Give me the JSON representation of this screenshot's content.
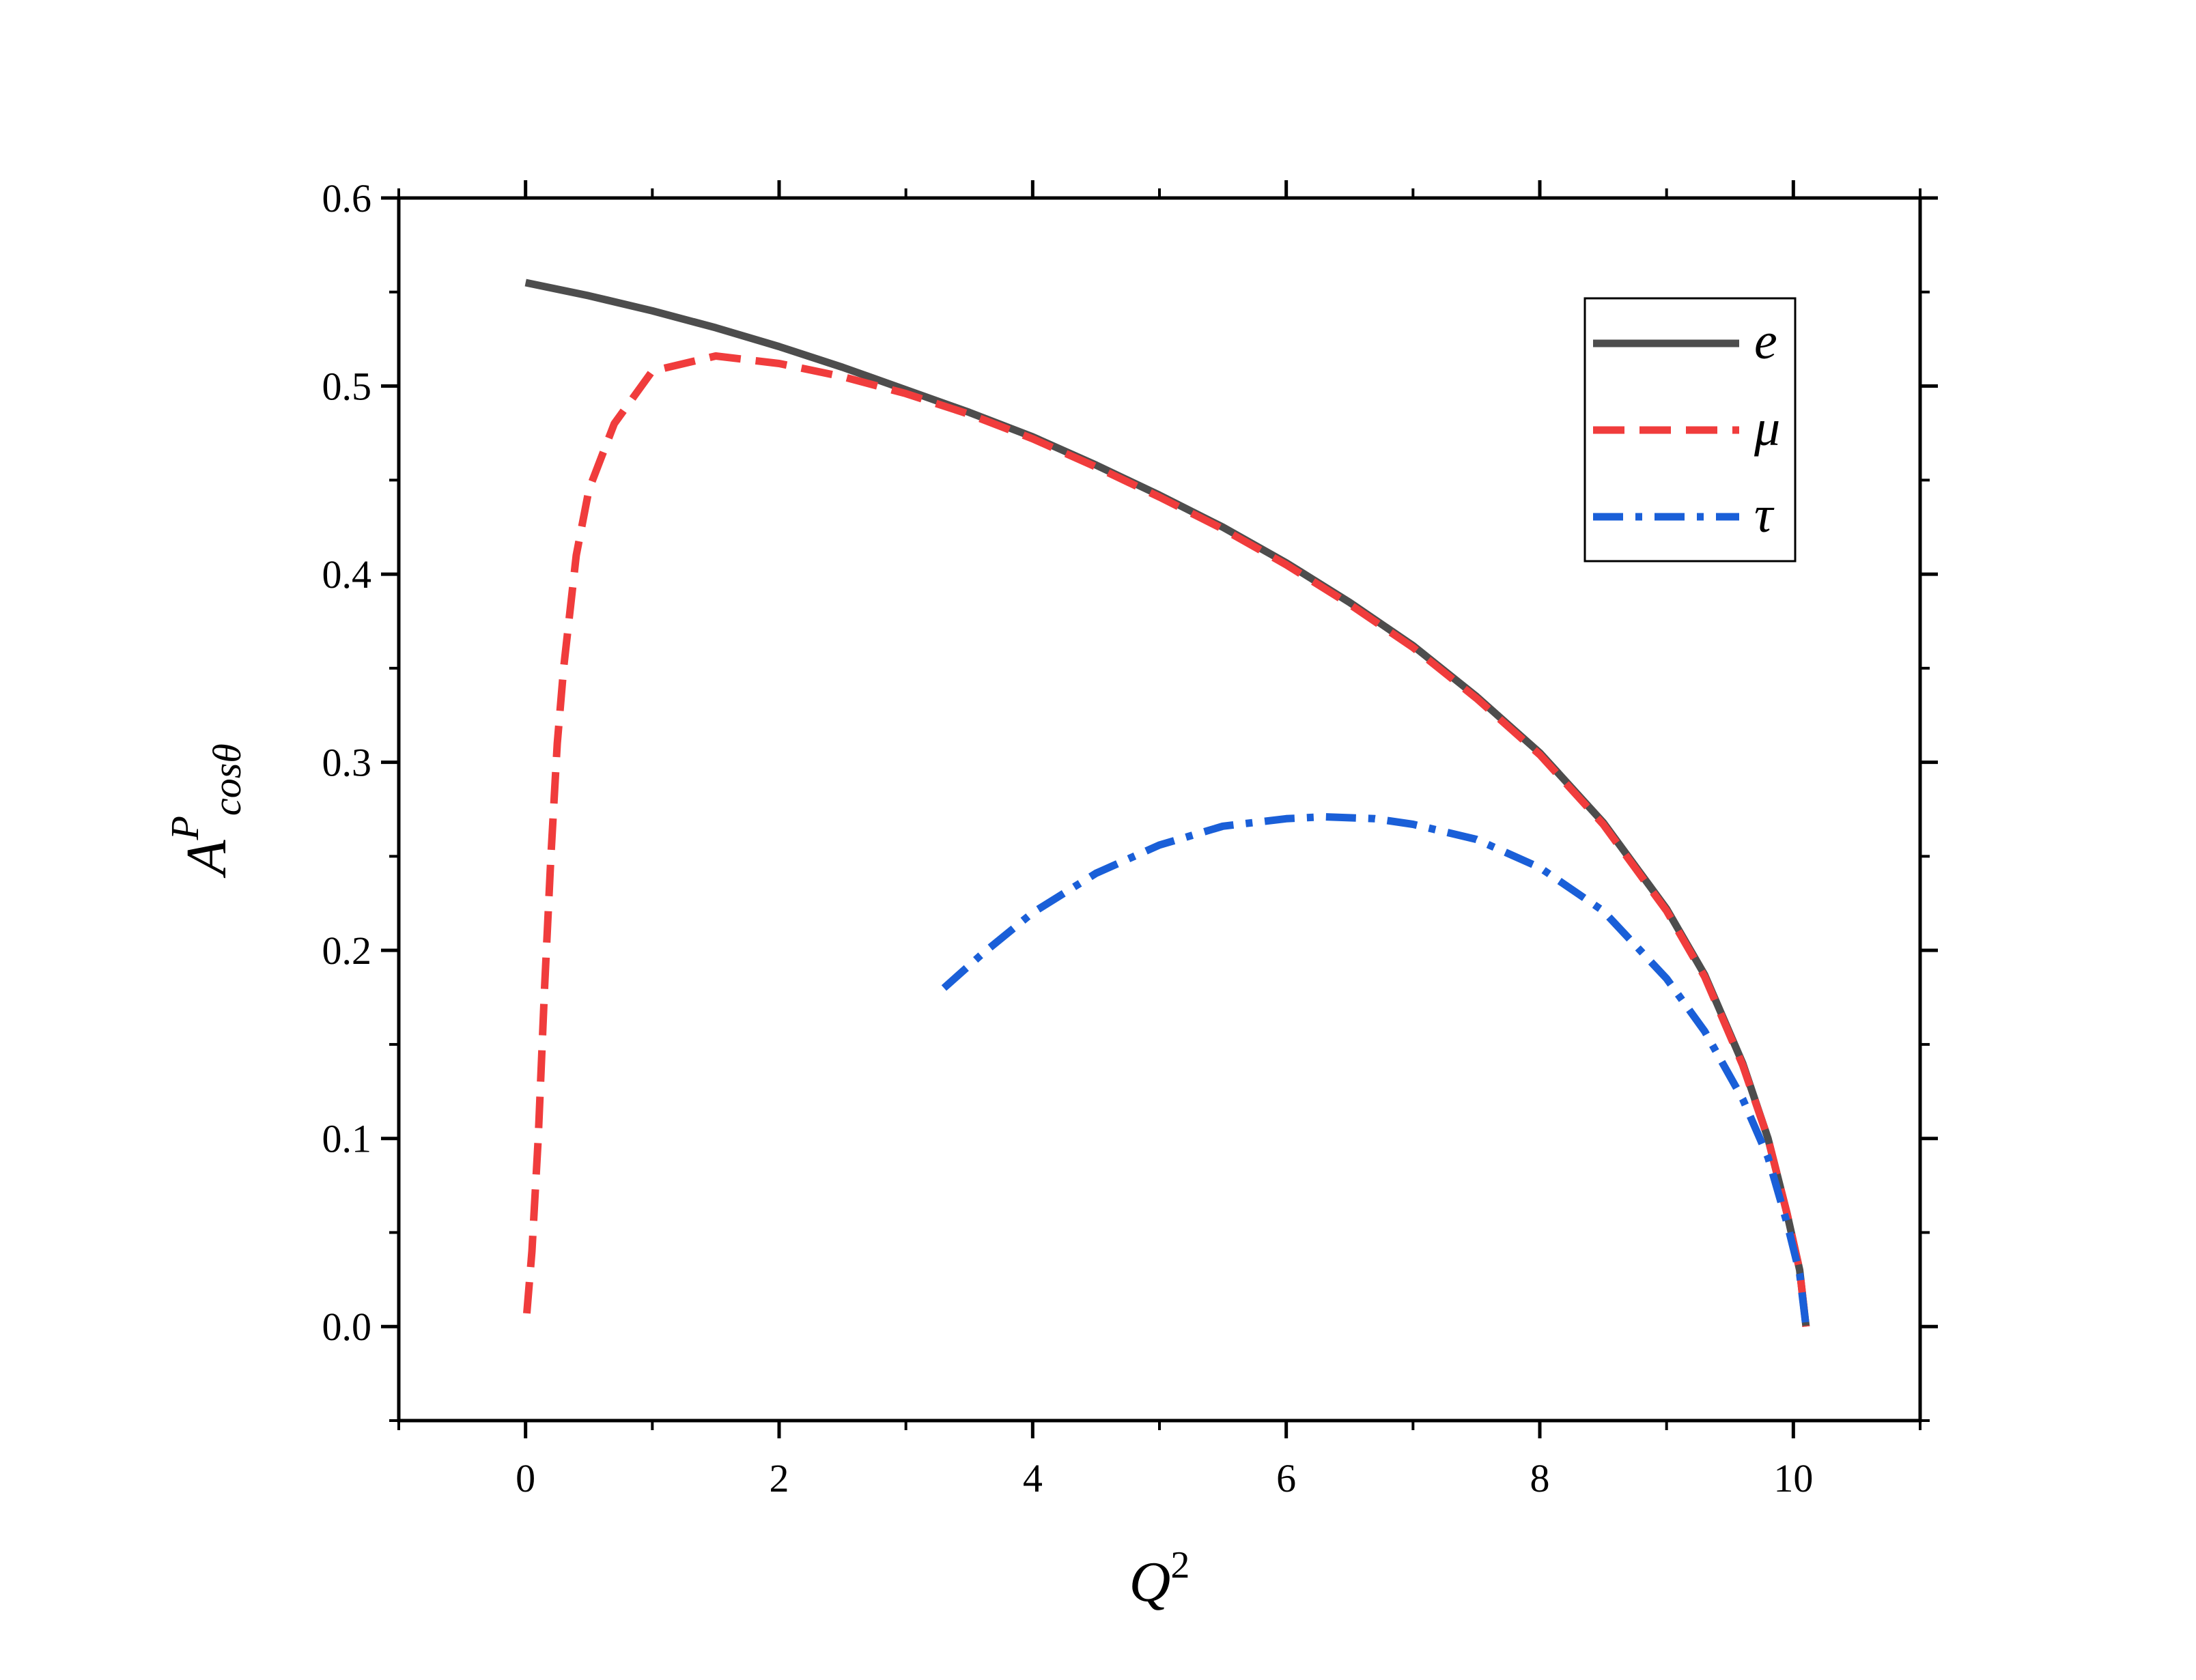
{
  "chart_data": {
    "type": "line",
    "title": "",
    "xlabel": {
      "main": "Q",
      "sup": "2"
    },
    "ylabel": {
      "main": "A",
      "sup": "P",
      "sub": "cosθ"
    },
    "xlim": [
      -1,
      11
    ],
    "ylim": [
      -0.05,
      0.6
    ],
    "xticks": [
      0,
      2,
      4,
      6,
      8,
      10
    ],
    "xtick_labels": [
      "0",
      "2",
      "4",
      "6",
      "8",
      "10"
    ],
    "yticks": [
      0.0,
      0.1,
      0.2,
      0.3,
      0.4,
      0.5,
      0.6
    ],
    "ytick_labels": [
      "0.0",
      "0.1",
      "0.2",
      "0.3",
      "0.4",
      "0.5",
      "0.6"
    ],
    "grid": false,
    "legend_position": "top-right",
    "series": [
      {
        "name": "e",
        "color": "#4d4d4d",
        "style": "solid",
        "x": [
          0.0,
          0.5,
          1.0,
          1.5,
          2.0,
          2.5,
          3.0,
          3.5,
          4.0,
          4.5,
          5.0,
          5.5,
          6.0,
          6.5,
          7.0,
          7.5,
          8.0,
          8.5,
          9.0,
          9.3,
          9.6,
          9.8,
          9.95,
          10.05,
          10.1
        ],
        "y": [
          0.555,
          0.548,
          0.54,
          0.531,
          0.521,
          0.51,
          0.498,
          0.486,
          0.473,
          0.458,
          0.442,
          0.425,
          0.406,
          0.385,
          0.362,
          0.335,
          0.305,
          0.268,
          0.222,
          0.187,
          0.14,
          0.1,
          0.06,
          0.03,
          0.0
        ]
      },
      {
        "name": "μ",
        "color": "#f03c3c",
        "style": "dashed",
        "x": [
          0.01,
          0.05,
          0.1,
          0.15,
          0.2,
          0.25,
          0.3,
          0.4,
          0.5,
          0.7,
          1.0,
          1.5,
          2.0,
          2.5,
          3.0,
          3.5,
          4.0,
          4.5,
          5.0,
          5.5,
          6.0,
          6.5,
          7.0,
          7.5,
          8.0,
          8.5,
          9.0,
          9.3,
          9.6,
          9.8,
          9.95,
          10.05,
          10.1
        ],
        "y": [
          0.007,
          0.04,
          0.1,
          0.18,
          0.25,
          0.31,
          0.35,
          0.41,
          0.445,
          0.48,
          0.508,
          0.516,
          0.512,
          0.505,
          0.496,
          0.485,
          0.472,
          0.457,
          0.441,
          0.424,
          0.405,
          0.384,
          0.361,
          0.334,
          0.304,
          0.267,
          0.221,
          0.186,
          0.139,
          0.1,
          0.06,
          0.03,
          0.0
        ]
      },
      {
        "name": "τ",
        "color": "#1a5fd8",
        "style": "dashdot",
        "x": [
          3.3,
          3.6,
          4.0,
          4.5,
          5.0,
          5.5,
          6.0,
          6.3,
          6.7,
          7.0,
          7.5,
          8.0,
          8.5,
          9.0,
          9.3,
          9.6,
          9.8,
          9.95,
          10.05,
          10.1
        ],
        "y": [
          0.18,
          0.198,
          0.22,
          0.241,
          0.256,
          0.266,
          0.27,
          0.271,
          0.27,
          0.267,
          0.259,
          0.244,
          0.221,
          0.185,
          0.157,
          0.121,
          0.09,
          0.055,
          0.028,
          0.0
        ]
      }
    ]
  }
}
